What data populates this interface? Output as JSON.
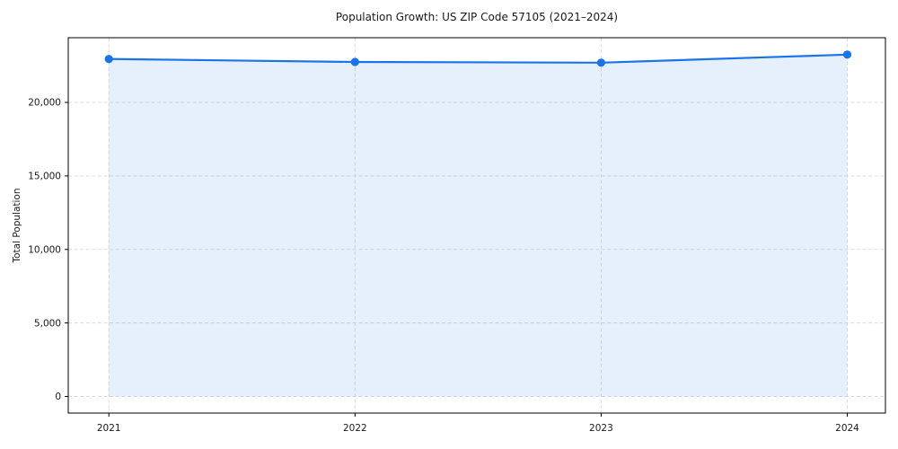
{
  "title": "Population Growth: US ZIP Code 57105 (2021–2024)",
  "chart_data": {
    "type": "area",
    "title": "Population Growth: US ZIP Code 57105 (2021–2024)",
    "xlabel": "",
    "ylabel": "Total Population",
    "x": [
      2021,
      2022,
      2023,
      2024
    ],
    "series": [
      {
        "name": "Total Population",
        "values": [
          22950,
          22750,
          22700,
          23250
        ]
      }
    ],
    "x_ticks": {
      "values": [
        2021,
        2022,
        2023,
        2024
      ],
      "labels": [
        "2021",
        "2022",
        "2023",
        "2024"
      ]
    },
    "y_ticks": {
      "values": [
        0,
        5000,
        10000,
        15000,
        20000
      ],
      "labels": [
        "0",
        "5,000",
        "10,000",
        "15,000",
        "20,000"
      ]
    },
    "xlim": [
      2020.835,
      2024.155
    ],
    "ylim": [
      -1130,
      24400
    ],
    "fill_baseline": 0,
    "grid": true,
    "legend": "none",
    "colors": {
      "line": "#1a73e8",
      "marker": "#1a73e8",
      "area_fill": "rgba(26,115,232,0.11)",
      "grid": "#d9d9d9",
      "spine": "#000000",
      "text": "#1a1a1a"
    }
  }
}
